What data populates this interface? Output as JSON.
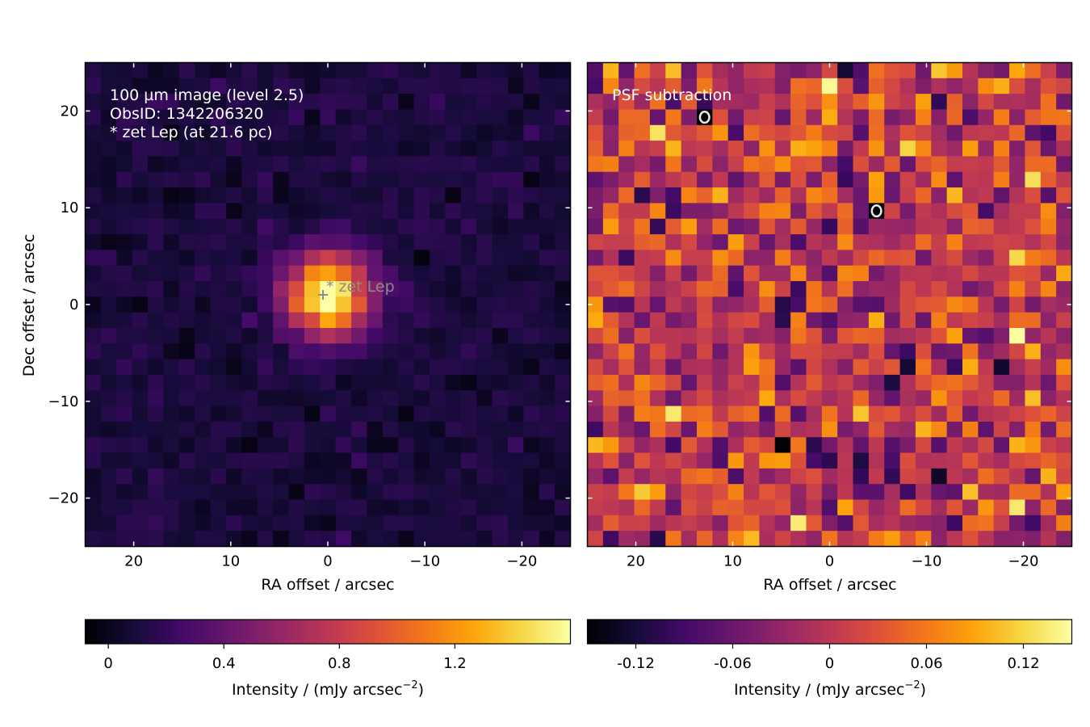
{
  "chart_data": [
    {
      "type": "heatmap",
      "panel": "left",
      "annotation_lines": [
        "100 µm image (level 2.5)",
        "ObsID: 1342206320",
        "* zet Lep (at 21.6 pc)"
      ],
      "star_label": "* zet Lep",
      "star_position": [
        0.5,
        1.0
      ],
      "xlabel": "RA offset / arcsec",
      "ylabel": "Dec offset / arcsec",
      "xlim": [
        25,
        -25
      ],
      "ylim": [
        -25,
        25
      ],
      "xticks": [
        20,
        10,
        0,
        -10,
        -20
      ],
      "xtick_labels": [
        "20",
        "10",
        "0",
        "−10",
        "−20"
      ],
      "yticks": [
        20,
        10,
        0,
        -10,
        -20
      ],
      "ytick_labels": [
        "20",
        "10",
        "0",
        "−10",
        "−20"
      ],
      "grid_size": 31,
      "source": {
        "x": 0,
        "y": 1,
        "peak": 1.58,
        "sigma_arcsec": 3.0
      },
      "noise_std": 0.05,
      "background": 0.1,
      "colormap": "inferno",
      "colorbar": {
        "label": "Intensity / (mJy arcsec",
        "label_exp": "−2",
        "label_end": ")",
        "range": [
          -0.08,
          1.6
        ],
        "ticks": [
          0,
          0.4,
          0.8,
          1.2
        ],
        "tick_labels": [
          "0",
          "0.4",
          "0.8",
          "1.2"
        ]
      }
    },
    {
      "type": "heatmap",
      "panel": "right",
      "annotation_lines": [
        "PSF subtraction"
      ],
      "xlabel": "RA offset / arcsec",
      "xlim": [
        25,
        -25
      ],
      "ylim": [
        -25,
        25
      ],
      "xticks": [
        20,
        10,
        0,
        -10,
        -20
      ],
      "xtick_labels": [
        "20",
        "10",
        "0",
        "−10",
        "−20"
      ],
      "grid_size": 31,
      "noise_std": 0.05,
      "colormap": "inferno",
      "contours": "±3σ (black positive, white negative)",
      "colorbar": {
        "label": "Intensity / (mJy arcsec",
        "label_exp": "−2",
        "label_end": ")",
        "range": [
          -0.15,
          0.15
        ],
        "ticks": [
          -0.12,
          -0.06,
          0,
          0.06,
          0.12
        ],
        "tick_labels": [
          "-0.12",
          "-0.06",
          "0",
          "0.06",
          "0.12"
        ]
      }
    }
  ]
}
